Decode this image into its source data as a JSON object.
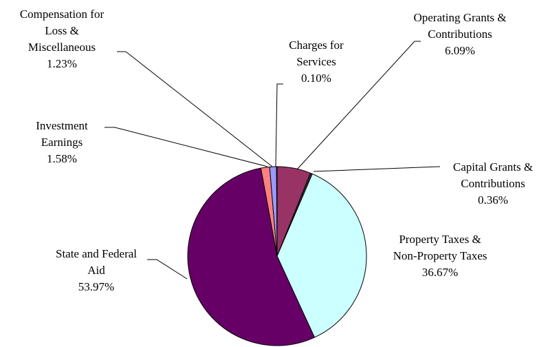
{
  "chart_data": {
    "type": "pie",
    "categories": [
      "Operating Grants & Contributions",
      "Capital Grants & Contributions",
      "Property Taxes & Non-Property Taxes",
      "State and Federal Aid",
      "Investment Earnings",
      "Compensation for Loss & Miscellaneous",
      "Charges for Services"
    ],
    "values": [
      6.09,
      0.36,
      36.67,
      53.97,
      1.58,
      1.23,
      0.1
    ],
    "value_labels": [
      "6.09%",
      "0.36%",
      "36.67%",
      "53.97%",
      "1.58%",
      "1.23%",
      "0.10%"
    ],
    "colors": [
      "#993366",
      "#333333",
      "#ccffff",
      "#660066",
      "#ff8080",
      "#9999ff",
      "#ffffcc"
    ]
  }
}
